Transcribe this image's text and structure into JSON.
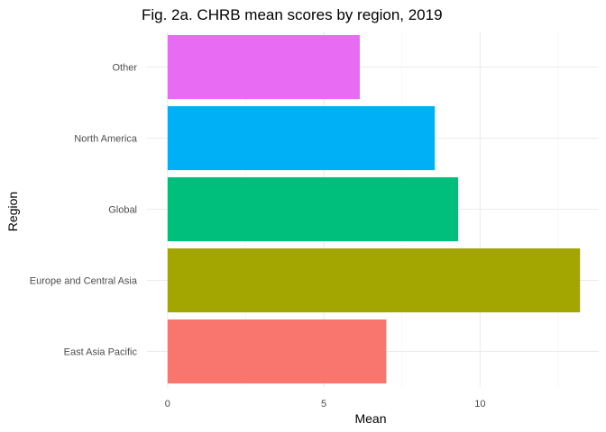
{
  "chart_data": {
    "type": "bar",
    "orientation": "horizontal",
    "title": "Fig. 2a. CHRB mean scores by region, 2019",
    "xlabel": "Mean",
    "ylabel": "Region",
    "categories": [
      "East Asia Pacific",
      "Europe and Central Asia",
      "Global",
      "North America",
      "Other"
    ],
    "values": [
      7.0,
      13.2,
      9.3,
      8.55,
      6.15
    ],
    "colors": [
      "#F8766D",
      "#A3A500",
      "#00BF7D",
      "#00B0F6",
      "#E76BF3"
    ],
    "xlim": [
      -0.66,
      13.8
    ],
    "xticks": [
      0,
      5,
      10
    ],
    "grid": true,
    "legend": "none"
  }
}
